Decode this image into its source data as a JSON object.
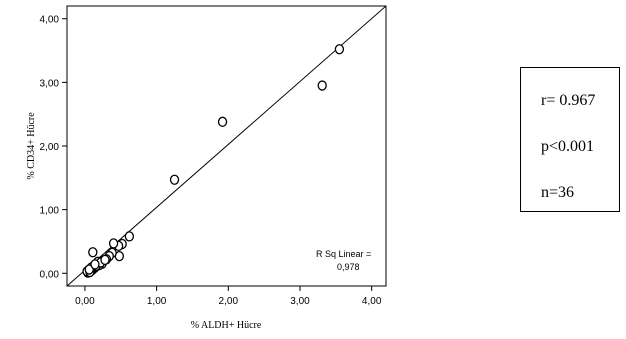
{
  "chart_data": {
    "type": "scatter",
    "xlabel": "% ALDH+ Hücre",
    "ylabel": "% CD34+ Hücre",
    "xlim": [
      -0.25,
      4.2
    ],
    "ylim": [
      -0.2,
      4.2
    ],
    "x_ticks": [
      "0,00",
      "1,00",
      "2,00",
      "3,00",
      "4,00"
    ],
    "y_ticks": [
      "0,00",
      "1,00",
      "2,00",
      "3,00",
      "4,00"
    ],
    "x_tick_values": [
      0,
      1,
      2,
      3,
      4
    ],
    "y_tick_values": [
      0,
      1,
      2,
      3,
      4
    ],
    "points": [
      {
        "x": 3.55,
        "y": 3.52
      },
      {
        "x": 3.31,
        "y": 2.95
      },
      {
        "x": 1.92,
        "y": 2.38
      },
      {
        "x": 1.25,
        "y": 1.47
      },
      {
        "x": 0.62,
        "y": 0.58
      },
      {
        "x": 0.52,
        "y": 0.46
      },
      {
        "x": 0.47,
        "y": 0.43
      },
      {
        "x": 0.48,
        "y": 0.27
      },
      {
        "x": 0.4,
        "y": 0.47
      },
      {
        "x": 0.38,
        "y": 0.32
      },
      {
        "x": 0.34,
        "y": 0.27
      },
      {
        "x": 0.3,
        "y": 0.22
      },
      {
        "x": 0.26,
        "y": 0.2
      },
      {
        "x": 0.24,
        "y": 0.15
      },
      {
        "x": 0.2,
        "y": 0.13
      },
      {
        "x": 0.18,
        "y": 0.18
      },
      {
        "x": 0.15,
        "y": 0.1
      },
      {
        "x": 0.13,
        "y": 0.08
      },
      {
        "x": 0.11,
        "y": 0.33
      },
      {
        "x": 0.1,
        "y": 0.05
      },
      {
        "x": 0.09,
        "y": 0.07
      },
      {
        "x": 0.08,
        "y": 0.04
      },
      {
        "x": 0.07,
        "y": 0.06
      },
      {
        "x": 0.06,
        "y": 0.03
      },
      {
        "x": 0.05,
        "y": 0.02
      },
      {
        "x": 0.05,
        "y": 0.05
      },
      {
        "x": 0.04,
        "y": 0.01
      },
      {
        "x": 0.03,
        "y": 0.03
      },
      {
        "x": 0.12,
        "y": 0.11
      },
      {
        "x": 0.16,
        "y": 0.12
      },
      {
        "x": 0.22,
        "y": 0.17
      },
      {
        "x": 0.28,
        "y": 0.21
      },
      {
        "x": 0.07,
        "y": 0.02
      },
      {
        "x": 0.09,
        "y": 0.09
      },
      {
        "x": 0.06,
        "y": 0.06
      },
      {
        "x": 0.14,
        "y": 0.14
      }
    ],
    "fit_line": {
      "x1": -0.25,
      "y1": -0.2,
      "x2": 4.2,
      "y2": 4.2
    },
    "annotation": {
      "line1": "R Sq Linear =",
      "line2": "0,978"
    },
    "grid": false,
    "legend": "none"
  },
  "stats": {
    "r": "r= 0.967",
    "p": "p<0.001",
    "n": "n=36"
  }
}
